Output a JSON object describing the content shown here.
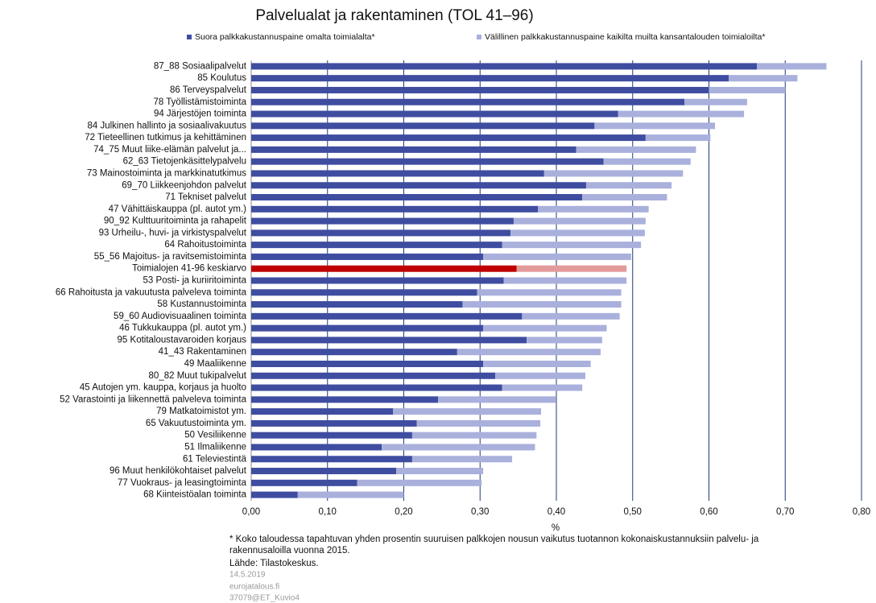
{
  "chart_data": {
    "type": "stacked-barh",
    "title": "Palvelualat ja rakentaminen (TOL 41–96)",
    "x_label": "%",
    "categories": [
      "87_88 Sosiaalipalvelut",
      "85 Koulutus",
      "86 Terveyspalvelut",
      "78 Työllistämistoiminta",
      "94 Järjestöjen toiminta",
      "84 Julkinen hallinto ja sosiaalivakuutus",
      "72 Tieteellinen tutkimus ja kehittäminen",
      "74_75 Muut liike-elämän palvelut ja...",
      "62_63 Tietojenkäsittelypalvelu",
      "73 Mainostoiminta ja markkinatutkimus",
      "69_70 Liikkeenjohdon palvelut",
      "71 Tekniset palvelut",
      "47 Vähittäiskauppa (pl. autot ym.)",
      "90_92 Kulttuuritoiminta ja rahapelit",
      "93 Urheilu-, huvi- ja virkistyspalvelut",
      "64 Rahoitustoiminta",
      "55_56 Majoitus- ja ravitsemistoiminta",
      "Toimialojen 41-96 keskiarvo",
      "53 Posti- ja kuriiritoiminta",
      "66 Rahoitusta ja vakuutusta palveleva toiminta",
      "58 Kustannustoiminta",
      "59_60 Audiovisuaalinen toiminta",
      "46 Tukkukauppa (pl. autot ym.)",
      "95 Kotitaloustavaroiden korjaus",
      "41_43 Rakentaminen",
      "49 Maaliikenne",
      "80_82 Muut tukipalvelut",
      "45 Autojen ym. kauppa, korjaus ja huolto",
      "52 Varastointi ja liikennettä palveleva toiminta",
      "79 Matkatoimistot ym.",
      "65 Vakuutustoiminta ym.",
      "50 Vesiliikenne",
      "51 Ilmaliikenne",
      "61 Televiestintä",
      "96 Muut henkilökohtaiset palvelut",
      "77 Vuokraus- ja leasingtoiminta",
      "68 Kiinteistöalan toiminta"
    ],
    "highlight": 17,
    "series": [
      {
        "name": "Suora palkkakustannuspaine omalta toimialalta*",
        "color": "#3f4da0",
        "highlight_color": "#c00000",
        "values": [
          0.663,
          0.626,
          0.6,
          0.568,
          0.481,
          0.45,
          0.517,
          0.426,
          0.462,
          0.384,
          0.439,
          0.434,
          0.376,
          0.344,
          0.34,
          0.329,
          0.304,
          0.348,
          0.331,
          0.296,
          0.277,
          0.355,
          0.304,
          0.361,
          0.27,
          0.304,
          0.32,
          0.329,
          0.245,
          0.186,
          0.217,
          0.211,
          0.171,
          0.211,
          0.19,
          0.139,
          0.061
        ]
      },
      {
        "name": "Välillinen palkkakustannuspaine kaikilta muilta kansantalouden toimialoilta*",
        "color": "#a9b0dc",
        "highlight_color": "#e39a9a",
        "values": [
          0.091,
          0.09,
          0.1,
          0.082,
          0.165,
          0.158,
          0.085,
          0.157,
          0.114,
          0.182,
          0.112,
          0.111,
          0.145,
          0.173,
          0.176,
          0.182,
          0.194,
          0.144,
          0.161,
          0.189,
          0.208,
          0.128,
          0.162,
          0.099,
          0.188,
          0.141,
          0.118,
          0.105,
          0.154,
          0.194,
          0.162,
          0.163,
          0.201,
          0.131,
          0.114,
          0.163,
          0.139
        ]
      }
    ],
    "xlim": [
      0,
      0.8
    ],
    "xticks": [
      {
        "value": 0,
        "label": "0,00"
      },
      {
        "value": 0.1,
        "label": "0,10"
      },
      {
        "value": 0.2,
        "label": "0,20"
      },
      {
        "value": 0.3,
        "label": "0,30"
      },
      {
        "value": 0.4,
        "label": "0,40"
      },
      {
        "value": 0.5,
        "label": "0,50"
      },
      {
        "value": 0.6,
        "label": "0,60"
      },
      {
        "value": 0.7,
        "label": "0,70"
      },
      {
        "value": 0.8,
        "label": "0,80"
      }
    ],
    "grid": true,
    "legend": "top",
    "footnote": [
      "* Koko taloudessa tapahtuvan yhden prosentin suuruisen palkkojen nousun vaikutus tuotannon kokonaiskustannuksiin palvelu- ja",
      "rakennusaloilla vuonna 2015."
    ],
    "source": "Lähde: Tilastokeskus.",
    "meta": [
      "14.5.2019",
      "eurojatalous.fi",
      "37079@ET_Kuvio4"
    ]
  }
}
